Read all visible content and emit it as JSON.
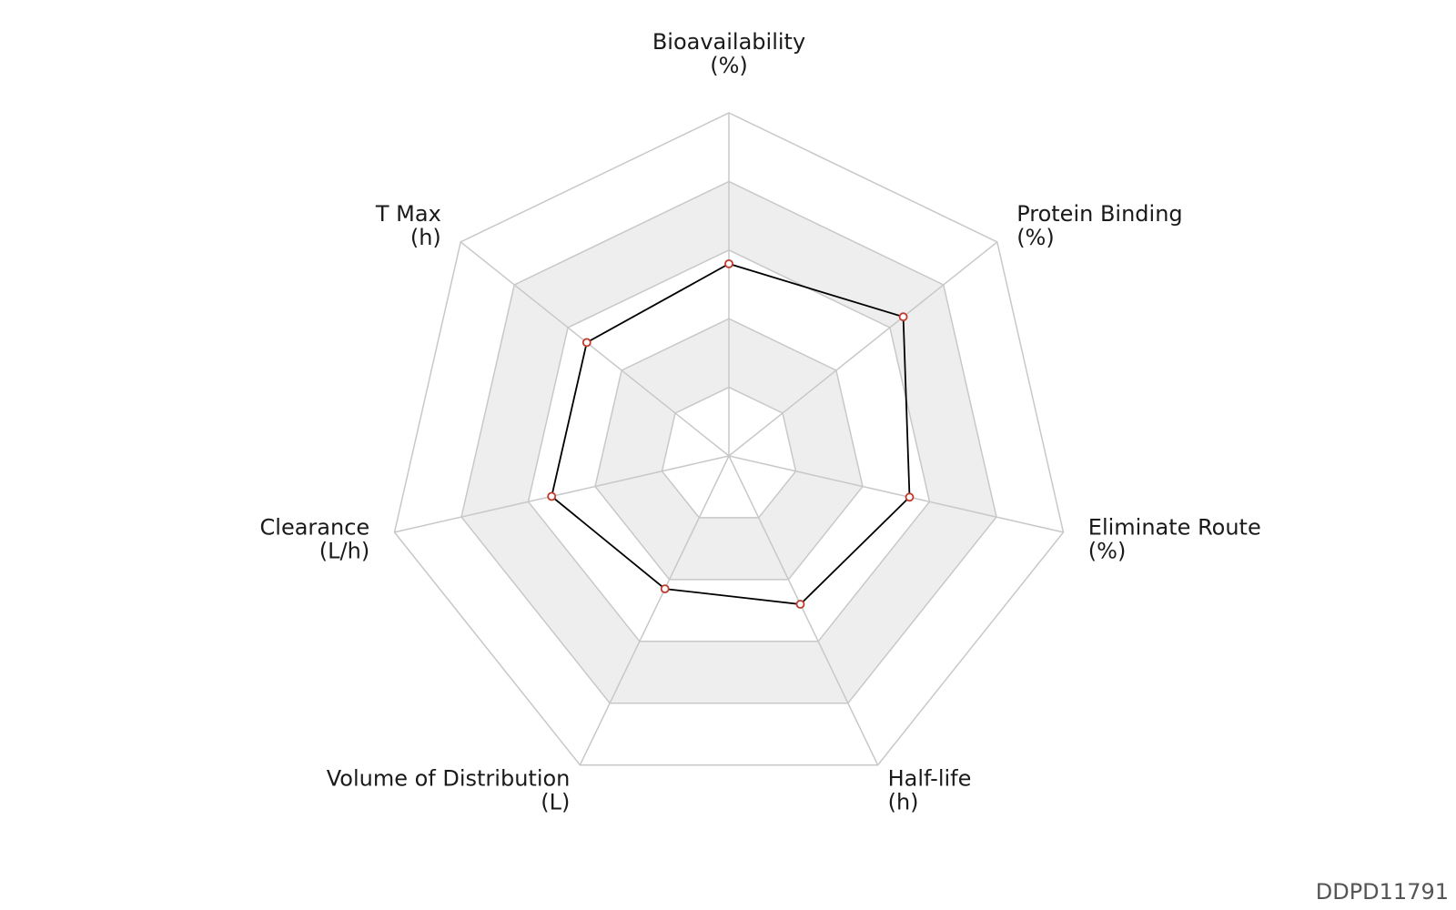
{
  "chart_data": {
    "type": "radar",
    "axes": [
      {
        "name": "Bioavailability",
        "unit": "(%)"
      },
      {
        "name": "Protein Binding",
        "unit": "(%)"
      },
      {
        "name": "Eliminate Route",
        "unit": "(%)"
      },
      {
        "name": "Half-life",
        "unit": "(h)"
      },
      {
        "name": "Volume of Distribution",
        "unit": "(L)"
      },
      {
        "name": "Clearance",
        "unit": "(L/h)"
      },
      {
        "name": "T Max",
        "unit": "(h)"
      }
    ],
    "levels": 5,
    "range": [
      0,
      1
    ],
    "series": [
      {
        "values": [
          0.56,
          0.65,
          0.54,
          0.48,
          0.43,
          0.53,
          0.53
        ]
      }
    ],
    "grid": true,
    "colors": {
      "line": "#000000",
      "marker_edge": "#c0392b",
      "marker_fill": "#ffffff",
      "grid": "#c8c8c8",
      "band": "#eeeeee"
    }
  },
  "footer": {
    "id": "DDPD11791"
  }
}
